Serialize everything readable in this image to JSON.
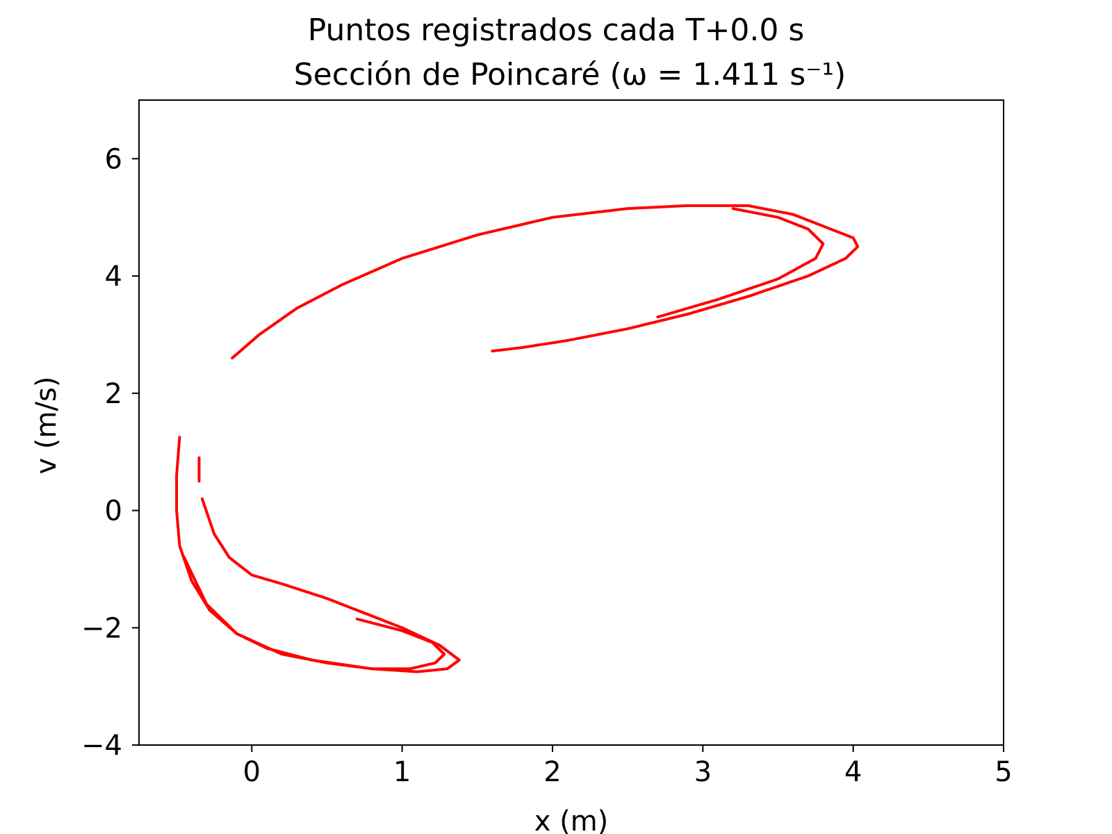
{
  "chart_data": {
    "type": "scatter",
    "title": "Puntos registrados cada T+0.0 s",
    "subtitle": "Sección de Poincaré (ω = 1.411 s⁻¹)",
    "xlabel": "x (m)",
    "ylabel": "v (m/s)",
    "xlim": [
      -0.75,
      5
    ],
    "ylim": [
      -4,
      7
    ],
    "xticks": [
      0,
      1,
      2,
      3,
      4,
      5
    ],
    "yticks": [
      -4,
      -2,
      0,
      2,
      4,
      6
    ],
    "xtick_labels": [
      "0",
      "1",
      "2",
      "3",
      "4",
      "5"
    ],
    "ytick_labels": [
      "−4",
      "−2",
      "0",
      "2",
      "4",
      "6"
    ],
    "grid": false,
    "marker_color": "#ff0000",
    "series": [
      {
        "x": [
          -0.13,
          0.05,
          0.3,
          0.6,
          1.0,
          1.5,
          2.0,
          2.5,
          2.9,
          3.3,
          3.6,
          3.8,
          4.0,
          4.03,
          3.95,
          3.7,
          3.3,
          2.9,
          2.5,
          2.1,
          1.8,
          1.6
        ],
        "y": [
          2.6,
          3.0,
          3.45,
          3.85,
          4.3,
          4.7,
          5.0,
          5.15,
          5.2,
          5.2,
          5.05,
          4.85,
          4.65,
          4.5,
          4.3,
          4.0,
          3.65,
          3.35,
          3.1,
          2.9,
          2.78,
          2.72
        ]
      },
      {
        "x": [
          3.2,
          3.5,
          3.7,
          3.8,
          3.75,
          3.5,
          3.1,
          2.7
        ],
        "y": [
          5.15,
          5.0,
          4.8,
          4.55,
          4.3,
          3.95,
          3.6,
          3.3
        ]
      },
      {
        "x": [
          -0.48,
          -0.5,
          -0.5,
          -0.48,
          -0.4,
          -0.28,
          -0.1,
          0.1,
          0.4,
          0.8,
          1.1,
          1.3,
          1.38,
          1.25,
          1.0,
          0.75,
          0.5,
          0.2,
          0.0,
          -0.15,
          -0.25,
          -0.33
        ],
        "y": [
          1.25,
          0.6,
          0.0,
          -0.6,
          -1.2,
          -1.7,
          -2.1,
          -2.35,
          -2.55,
          -2.7,
          -2.75,
          -2.7,
          -2.55,
          -2.3,
          -2.0,
          -1.75,
          -1.5,
          -1.25,
          -1.1,
          -0.8,
          -0.4,
          0.2
        ]
      },
      {
        "x": [
          -0.35,
          -0.35,
          -0.35
        ],
        "y": [
          0.9,
          0.7,
          0.5
        ]
      },
      {
        "x": [
          -0.45,
          -0.3,
          -0.1,
          0.2,
          0.5,
          0.8,
          1.05,
          1.22,
          1.28,
          1.2,
          1.0,
          0.7
        ],
        "y": [
          -0.8,
          -1.6,
          -2.1,
          -2.45,
          -2.6,
          -2.7,
          -2.7,
          -2.6,
          -2.45,
          -2.25,
          -2.05,
          -1.85
        ]
      }
    ]
  }
}
